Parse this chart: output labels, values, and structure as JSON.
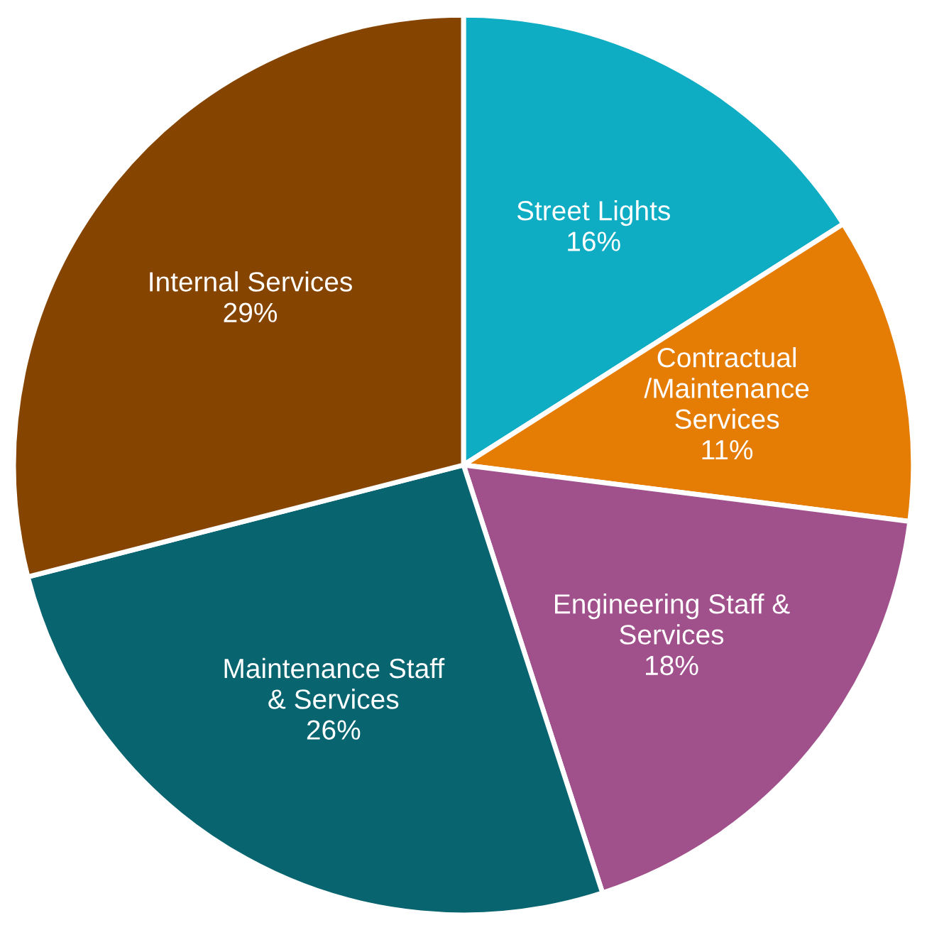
{
  "chart_data": {
    "type": "pie",
    "categories": [
      "Street Lights",
      "Contractual\n/Maintenance\nServices",
      "Engineering Staff &\nServices",
      "Maintenance Staff\n& Services",
      "Internal Services"
    ],
    "values": [
      16,
      11,
      18,
      26,
      29
    ],
    "colors": [
      "#0eadc4",
      "#e57c04",
      "#a0508a",
      "#086570",
      "#854500"
    ],
    "value_labels": [
      "16%",
      "11%",
      "18%",
      "26%",
      "29%"
    ]
  }
}
